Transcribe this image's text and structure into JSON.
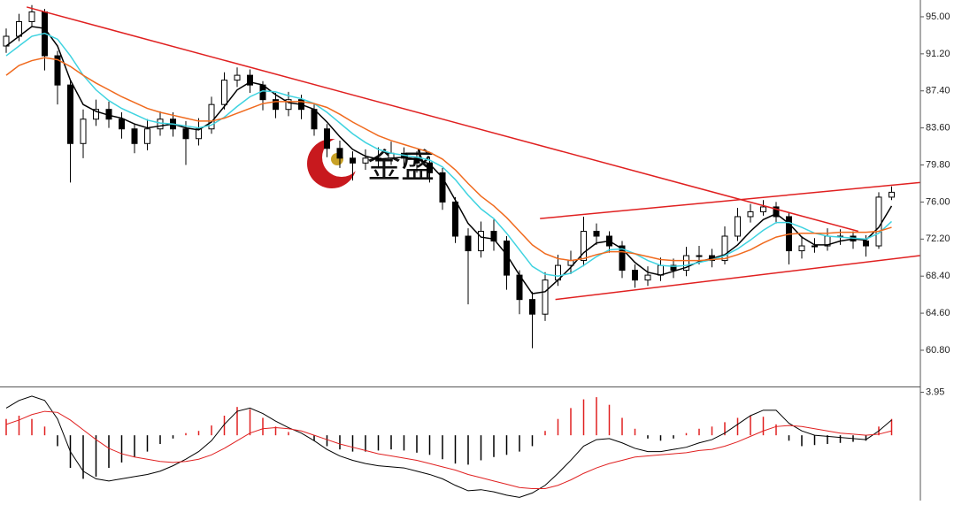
{
  "chart_data": [
    {
      "type": "candlestick",
      "watermark": "金盛",
      "ylim": [
        57.08,
        96.72
      ],
      "yticks": [
        {
          "value": 95,
          "label": "95.00"
        },
        {
          "value": 91.2,
          "label": "91.20"
        },
        {
          "value": 87.4,
          "label": "87.40"
        },
        {
          "value": 83.6,
          "label": "83.60"
        },
        {
          "value": 79.8,
          "label": "79.80"
        },
        {
          "value": 76,
          "label": "76.00"
        },
        {
          "value": 72.2,
          "label": "72.20"
        },
        {
          "value": 68.4,
          "label": "68.40"
        },
        {
          "value": 64.6,
          "label": "64.60"
        },
        {
          "value": 60.8,
          "label": "60.80"
        }
      ],
      "up_color": "#ffffff",
      "down_color": "#000000",
      "open": [
        92,
        93,
        94.5,
        95.5,
        91,
        88,
        82,
        84.5,
        85.5,
        84.5,
        83.5,
        82,
        83.5,
        84.5,
        83.5,
        82.5,
        83.5,
        86,
        88.5,
        89,
        88,
        86.5,
        85.5,
        86.5,
        85.5,
        83.5,
        81.5,
        80.5,
        80,
        80.5,
        80.5,
        81,
        80.5,
        80,
        79,
        76,
        72.5,
        71,
        73,
        72,
        68.5,
        66,
        64.5,
        68,
        69.5,
        70,
        73,
        72.5,
        71.5,
        69,
        68,
        68.5,
        69.5,
        69,
        70.5,
        70.5,
        70,
        72.5,
        74.5,
        75,
        75.5,
        74.5,
        71,
        71.5,
        71.5,
        72.5,
        72.5,
        72,
        71.5,
        76.5
      ],
      "high": [
        93.8,
        95.3,
        96.2,
        95.8,
        91.5,
        88.5,
        85.5,
        86.5,
        86.3,
        85.2,
        84,
        84.5,
        85.3,
        85.2,
        84.3,
        84.6,
        86.8,
        89.3,
        89.8,
        89.6,
        88.4,
        87.2,
        87.3,
        87,
        86,
        84,
        82.3,
        81.2,
        81.4,
        81.6,
        82.2,
        81.6,
        81.2,
        80.6,
        79.5,
        76.5,
        73.3,
        74,
        74.2,
        72.5,
        69,
        66.8,
        68.8,
        70.6,
        71,
        74.5,
        73.8,
        73,
        72,
        69.6,
        69.4,
        70.3,
        70.2,
        71.4,
        71.5,
        71.2,
        73.5,
        75.4,
        75.8,
        76.2,
        76,
        75,
        72.5,
        72.3,
        73.3,
        73.2,
        73,
        72.6,
        77,
        77.6
      ],
      "low": [
        91.3,
        92.5,
        94,
        89.5,
        86,
        78,
        80.5,
        83.8,
        83.6,
        82.5,
        81,
        81.3,
        82.8,
        82.7,
        79.8,
        81.8,
        83,
        85.5,
        87.8,
        87.2,
        85.4,
        84.6,
        84.8,
        84.5,
        82.8,
        80.6,
        79.5,
        78.2,
        79.3,
        79.6,
        79.8,
        79.6,
        79,
        78,
        75.2,
        71.8,
        65.5,
        70.3,
        71,
        67,
        64.5,
        61,
        63.8,
        67.4,
        68.6,
        69.4,
        71.6,
        70.8,
        68.2,
        67.2,
        67.4,
        67.9,
        68.2,
        68.4,
        69.6,
        69.3,
        69.6,
        72,
        73.9,
        74.6,
        73.8,
        69.6,
        70.2,
        70.8,
        71,
        71.6,
        71.2,
        70.4,
        71.2,
        76.2
      ],
      "close": [
        93,
        94.5,
        95.5,
        91,
        88,
        82,
        84.5,
        85.5,
        84.5,
        83.5,
        82,
        83.5,
        84.5,
        83.5,
        82.5,
        83.5,
        86,
        88.5,
        89,
        88,
        86.5,
        85.5,
        86.5,
        85.5,
        83.5,
        81.5,
        80.5,
        80,
        80.5,
        80.5,
        81,
        80.5,
        80,
        79,
        76,
        72.5,
        71,
        73,
        72,
        68.5,
        66,
        64.5,
        68,
        69.5,
        70,
        73,
        72.5,
        71.5,
        69,
        68,
        68.5,
        69.5,
        69,
        70.5,
        70.5,
        70,
        72.5,
        74.5,
        75,
        75.5,
        74.5,
        71,
        71.5,
        71.5,
        72.5,
        72.5,
        72,
        71.5,
        76.5,
        77
      ],
      "series": [
        {
          "color": "#000000",
          "values": [
            92,
            93,
            94,
            93.8,
            92,
            88.5,
            86,
            85.3,
            84.9,
            84.6,
            84,
            83.6,
            83.8,
            84,
            83.6,
            83.4,
            84.2,
            85.8,
            87.5,
            88.3,
            88,
            87,
            86.2,
            86,
            85.5,
            84.2,
            82.7,
            81.4,
            80.7,
            80.4,
            80.5,
            80.6,
            80.4,
            79.9,
            78.5,
            76.2,
            73.8,
            72.4,
            72.2,
            70.6,
            68.5,
            66.6,
            66.8,
            68,
            69.3,
            70.8,
            71.8,
            72,
            71.2,
            69.8,
            68.8,
            68.5,
            68.9,
            69.3,
            69.9,
            70.2,
            70.6,
            71.6,
            73,
            74.2,
            74.8,
            73.8,
            72.4,
            71.6,
            71.6,
            72,
            72.2,
            72.1,
            73.4,
            75.6
          ]
        },
        {
          "color": "#3fd3e0",
          "values": [
            91,
            92,
            93,
            93.3,
            92.7,
            91,
            89,
            87.5,
            86.4,
            85.6,
            85,
            84.4,
            84.1,
            84,
            83.8,
            83.6,
            83.9,
            84.7,
            85.8,
            86.8,
            87.4,
            87.3,
            86.9,
            86.6,
            86.1,
            85.2,
            84.1,
            83,
            82.1,
            81.4,
            81,
            80.8,
            80.6,
            80.3,
            79.6,
            78.3,
            76.7,
            75.3,
            74.3,
            72.8,
            71.1,
            69.4,
            68.6,
            68.4,
            68.7,
            69.5,
            70.4,
            71.1,
            71.2,
            70.7,
            70,
            69.5,
            69.4,
            69.5,
            69.8,
            70.1,
            70.5,
            71.2,
            72.1,
            73.1,
            73.9,
            73.9,
            73.4,
            72.8,
            72.5,
            72.4,
            72.3,
            72.2,
            72.8,
            74
          ]
        },
        {
          "color": "#f06a1e",
          "values": [
            89,
            90,
            90.5,
            90.8,
            90.6,
            89.9,
            89,
            88.2,
            87.5,
            86.8,
            86.2,
            85.6,
            85.2,
            84.9,
            84.6,
            84.3,
            84.3,
            84.6,
            85.1,
            85.6,
            86.1,
            86.3,
            86.3,
            86.3,
            86.1,
            85.7,
            85,
            84.2,
            83.5,
            82.8,
            82.3,
            81.9,
            81.5,
            81.1,
            80.4,
            79.3,
            77.9,
            76.6,
            75.6,
            74.4,
            73,
            71.6,
            70.7,
            70.2,
            70,
            70.2,
            70.6,
            70.9,
            70.9,
            70.7,
            70.4,
            70.1,
            70,
            70,
            70,
            70.1,
            70.2,
            70.6,
            71.1,
            71.8,
            72.4,
            72.7,
            72.8,
            72.8,
            72.8,
            72.9,
            72.9,
            72.9,
            73,
            73.4
          ]
        }
      ],
      "lines": [
        {
          "color": "#e02020",
          "x": [
            1.6,
            66.4
          ],
          "y": [
            96,
            73
          ]
        },
        {
          "color": "#e02020",
          "x": [
            41.6,
            71.2
          ],
          "y": [
            74.3,
            78
          ]
        },
        {
          "color": "#e02020",
          "x": [
            42.8,
            71.2
          ],
          "y": [
            66,
            70.5
          ]
        }
      ]
    },
    {
      "type": "macd",
      "ylim": [
        -6,
        4.4
      ],
      "yticks": [
        3.95
      ],
      "pos_color": "#e02020",
      "neg_color": "#000000",
      "histogram": [
        1.5,
        1.8,
        1.5,
        0.8,
        -1,
        -3,
        -4,
        -3.8,
        -3,
        -2.5,
        -2,
        -1.5,
        -0.8,
        -0.3,
        0.2,
        0.4,
        0.9,
        1.8,
        2.6,
        2.4,
        1.6,
        0.8,
        0.3,
        0,
        -0.5,
        -1,
        -1.3,
        -1.5,
        -1.5,
        -1.4,
        -1.3,
        -1.4,
        -1.6,
        -1.8,
        -2.2,
        -2.6,
        -2.7,
        -2.3,
        -2,
        -1.8,
        -1.5,
        -1,
        0.4,
        1.5,
        2.5,
        3.3,
        3.5,
        2.8,
        1.6,
        0.6,
        -0.3,
        -0.5,
        -0.3,
        0.2,
        0.6,
        0.8,
        1.2,
        1.6,
        1.8,
        1.7,
        1,
        -0.5,
        -1,
        -0.9,
        -0.8,
        -0.7,
        -0.6,
        -0.5,
        0.8,
        1.5
      ],
      "series": [
        {
          "color": "#000000",
          "values": [
            2.5,
            3.2,
            3.6,
            3.2,
            1.5,
            -1.5,
            -3.3,
            -4,
            -4.2,
            -4,
            -3.8,
            -3.6,
            -3.3,
            -2.8,
            -2.2,
            -1.5,
            -0.5,
            1,
            2.2,
            2.5,
            2,
            1.3,
            0.7,
            0.2,
            -0.5,
            -1.3,
            -1.9,
            -2.3,
            -2.6,
            -2.8,
            -2.9,
            -3,
            -3.3,
            -3.6,
            -4,
            -4.6,
            -5.1,
            -5,
            -5.2,
            -5.5,
            -5.7,
            -5.3,
            -4.6,
            -3.5,
            -2.3,
            -1,
            -0.4,
            -0.3,
            -0.7,
            -1.2,
            -1.5,
            -1.5,
            -1.3,
            -1.1,
            -0.7,
            -0.4,
            0.2,
            1,
            1.8,
            2.3,
            2.3,
            1.1,
            0.4,
            0,
            -0.1,
            -0.2,
            -0.3,
            -0.4,
            0.4,
            1.4
          ]
        },
        {
          "color": "#e02020",
          "values": [
            1,
            1.4,
            1.9,
            2.2,
            2.1,
            1.4,
            0.5,
            -0.4,
            -1.2,
            -1.7,
            -2,
            -2.2,
            -2.4,
            -2.5,
            -2.4,
            -2.2,
            -1.8,
            -1.2,
            -0.5,
            0.2,
            0.6,
            0.7,
            0.6,
            0.4,
            0,
            -0.4,
            -0.8,
            -1.1,
            -1.4,
            -1.7,
            -1.9,
            -2.1,
            -2.3,
            -2.6,
            -2.9,
            -3.2,
            -3.6,
            -3.9,
            -4.2,
            -4.5,
            -4.8,
            -4.9,
            -4.9,
            -4.6,
            -4.1,
            -3.5,
            -3,
            -2.6,
            -2.3,
            -2,
            -1.9,
            -1.8,
            -1.7,
            -1.6,
            -1.4,
            -1.3,
            -1,
            -0.6,
            -0.1,
            0.4,
            0.8,
            0.9,
            0.8,
            0.6,
            0.4,
            0.2,
            0.1,
            0,
            0.1,
            0.4
          ]
        }
      ]
    }
  ]
}
